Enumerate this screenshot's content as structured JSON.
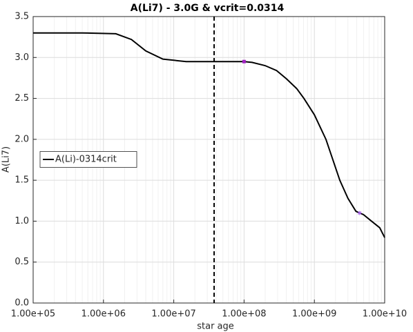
{
  "chart_data": {
    "type": "line",
    "title": "A(Li7) - 3.0G & vcrit=0.0314",
    "xlabel": "star age",
    "ylabel": "A(Li7)",
    "xscale": "log",
    "xlim": [
      100000,
      10000000000
    ],
    "xticks": [
      {
        "value": 100000,
        "label": "1.00e+05"
      },
      {
        "value": 1000000,
        "label": "1.00e+06"
      },
      {
        "value": 10000000,
        "label": "1.00e+07"
      },
      {
        "value": 100000000,
        "label": "1.00e+08"
      },
      {
        "value": 1000000000,
        "label": "1.00e+09"
      },
      {
        "value": 10000000000,
        "label": "1.00e+10"
      }
    ],
    "ylim": [
      0,
      3.5
    ],
    "yticks": [
      {
        "value": 0,
        "label": "0.0"
      },
      0.5,
      {
        "value": 1,
        "label": "1.0"
      },
      1.5,
      {
        "value": 2,
        "label": "2.0"
      },
      2.5,
      {
        "value": 3,
        "label": "3.0"
      },
      3.5
    ],
    "grid": true,
    "legend": "west",
    "series": [
      {
        "name": "A(Li)-0314crit",
        "color": "#000000",
        "x": [
          100000,
          500000,
          1500000,
          2500000,
          4000000,
          7000000,
          15000000,
          50000000,
          100000000,
          130000000,
          200000000,
          290000000,
          400000000,
          560000000,
          710000000,
          1000000000,
          1460000000,
          2300000000,
          3000000000,
          3900000000,
          5000000000,
          6500000000,
          8500000000,
          10000000000
        ],
        "values": [
          3.3,
          3.3,
          3.29,
          3.22,
          3.08,
          2.98,
          2.95,
          2.95,
          2.95,
          2.94,
          2.9,
          2.84,
          2.74,
          2.62,
          2.5,
          2.3,
          2.0,
          1.5,
          1.28,
          1.12,
          1.08,
          1.0,
          0.92,
          0.8
        ]
      }
    ],
    "vline": 37500000,
    "markers": [
      {
        "x": 100000000,
        "y": 2.95,
        "symbol": "square",
        "color": "#a020c0"
      },
      {
        "x": 4400000000,
        "y": 1.1,
        "symbol": "star",
        "color": "#a060e0"
      }
    ]
  }
}
